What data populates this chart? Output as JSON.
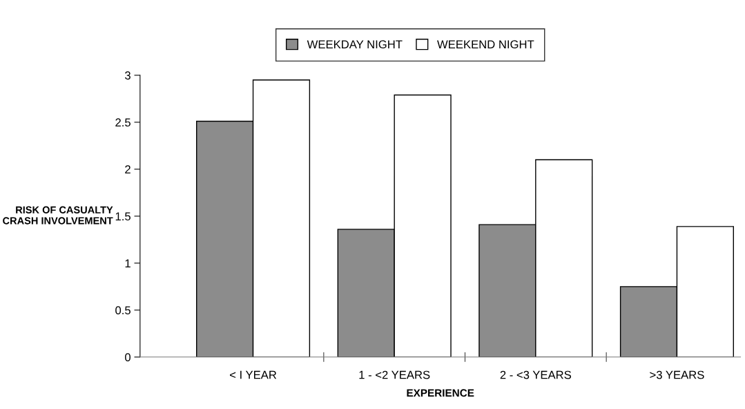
{
  "chart_data": {
    "type": "bar",
    "xlabel": "EXPERIENCE",
    "ylabel": "RISK OF CASUALTY\nCRASH INVOLVEMENT",
    "categories": [
      "< I YEAR",
      "1 - <2 YEARS",
      "2 - <3 YEARS",
      ">3 YEARS"
    ],
    "series": [
      {
        "name": "WEEKDAY NIGHT",
        "color": "#8c8c8c",
        "values": [
          2.51,
          1.36,
          1.41,
          0.75
        ]
      },
      {
        "name": "WEEKEND NIGHT",
        "color": "#ffffff",
        "values": [
          2.95,
          2.79,
          2.1,
          1.39
        ]
      }
    ],
    "ylim": [
      0,
      3
    ],
    "yticks": [
      0,
      0.5,
      1,
      1.5,
      2,
      2.5,
      3
    ],
    "grid": false,
    "legend": "top"
  }
}
